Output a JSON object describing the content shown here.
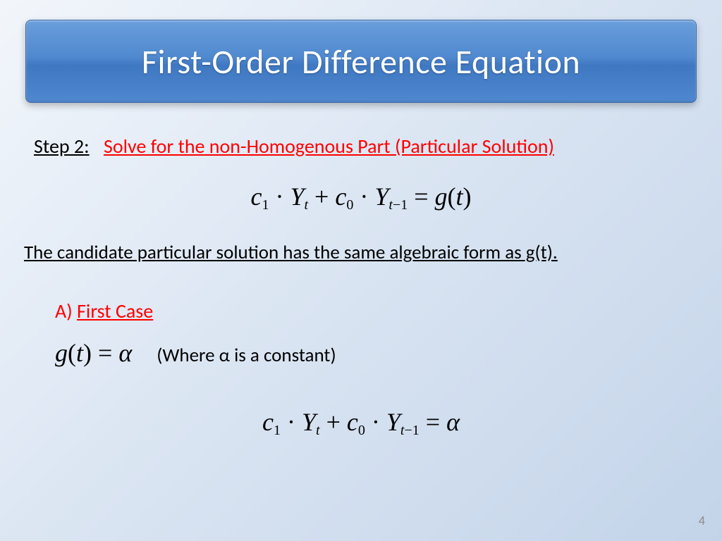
{
  "slide": {
    "title": "First-Order Difference Equation",
    "step_label": "Step 2:",
    "step_desc": "Solve for the non-Homogenous Part (Particular Solution)",
    "candidate_text": "The candidate particular solution has the same algebraic form as g(t).",
    "case_prefix": "A) ",
    "case_label": "First Case",
    "gt_note": "(Where α is a constant)",
    "slide_number": "4",
    "colors": {
      "accent_red": "#ff0000",
      "title_text": "#ffffff",
      "title_grad_top": "#6a9edc",
      "title_grad_bottom": "#4f88cf",
      "bg_top": "#f2f6fb",
      "bg_bottom": "#c3d4e9",
      "page_num": "#8c8c8c"
    },
    "equations": {
      "eq1": "c₁ · Yₜ + c₀ · Yₜ₋₁ = g(t)",
      "gt": "g(t) = α",
      "eq2": "c₁ · Yₜ + c₀ · Yₜ₋₁ = α"
    }
  }
}
